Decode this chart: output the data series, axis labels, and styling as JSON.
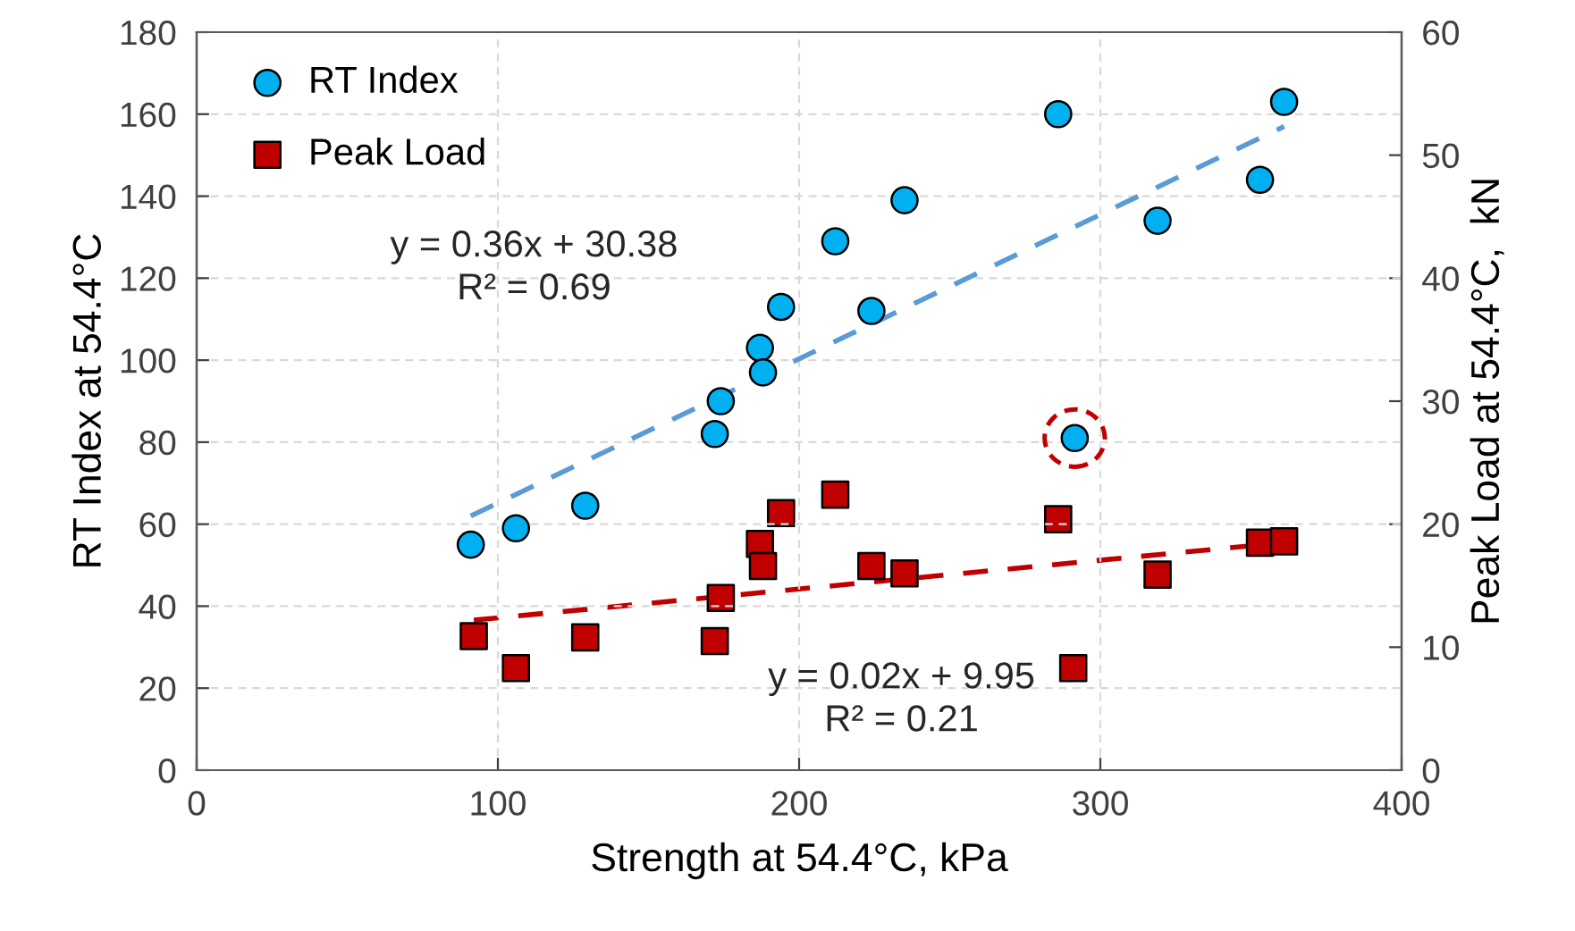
{
  "chart_data": {
    "type": "scatter",
    "xlabel": "Strength at 54.4°C, kPa",
    "ylabel": "RT Index at 54.4°C",
    "y2label": "Peak Load at 54.4°C,  kN",
    "xlim": [
      0,
      400
    ],
    "xticks": [
      0,
      100,
      200,
      300,
      400
    ],
    "ylim": [
      0,
      180
    ],
    "yticks": [
      0,
      20,
      40,
      60,
      80,
      100,
      120,
      140,
      160,
      180
    ],
    "y2lim": [
      0,
      60
    ],
    "y2ticks": [
      0,
      10,
      20,
      30,
      40,
      50,
      60
    ],
    "grid": true,
    "legend": "top left",
    "series": [
      {
        "name": "RT Index",
        "marker": "circle",
        "color": "#00b0f0",
        "x": [
          91,
          106,
          129,
          172,
          174,
          187,
          188,
          194,
          212,
          224,
          235,
          286,
          291.5,
          319,
          353,
          361
        ],
        "values": [
          55,
          59,
          64.5,
          82,
          90,
          103,
          97,
          113,
          129,
          112,
          139,
          160,
          81,
          134,
          144,
          163
        ]
      },
      {
        "name": "Peak Load",
        "marker": "square",
        "color": "#c00000",
        "axis": "y2",
        "x": [
          92,
          106,
          129,
          172,
          174,
          187,
          188,
          194,
          212,
          224,
          235,
          286,
          291,
          319,
          353,
          361
        ],
        "values": [
          10.9,
          8.3,
          10.8,
          10.5,
          14.0,
          18.4,
          16.6,
          20.9,
          22.4,
          16.6,
          16.0,
          20.4,
          8.3,
          15.9,
          18.5,
          18.6
        ]
      },
      {
        "type": "line",
        "line_style": "dashed",
        "color": "#5b9bd5",
        "x": [
          91,
          361
        ],
        "values": [
          62,
          157
        ]
      },
      {
        "type": "line",
        "line_style": "dashed",
        "color": "#c00000",
        "axis": "y2",
        "x": [
          92,
          361
        ],
        "values": [
          12.2,
          18.5
        ]
      }
    ],
    "annotations": [
      "y = 0.36x + 30.38\nR² = 0.69",
      "y = 0.02x + 9.95\nR² = 0.21"
    ]
  }
}
